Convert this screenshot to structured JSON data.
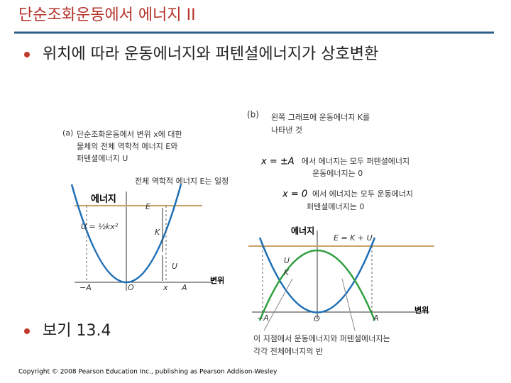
{
  "title": "단순조화운동에서 에너지 II",
  "bullets": [
    "위치에 따라 운동에너지와 퍼텐셜에너지가 상호변환",
    "보기 13.4"
  ],
  "figure_a": {
    "tag": "(a)",
    "caption": [
      "단순조화운동에서 변위 x에 대한",
      "물체의 전체 역학적 에너지 E와",
      "퍼텐셜에너지 U"
    ],
    "note": "전체 역학적 에너지 E는 일정",
    "y_axis": "에너지",
    "x_axis": "변위",
    "labels": {
      "E": "E",
      "U_formula": "U = ½kx²",
      "K": "K",
      "U": "U",
      "neg_A": "−A",
      "O": "O",
      "x": "x",
      "A": "A"
    }
  },
  "figure_b": {
    "tag": "(b)",
    "caption": [
      "왼쪽 그래프에 운동에너지 K를",
      "나타낸 것"
    ],
    "edge": {
      "position": "x = ±A",
      "lines": [
        "에서 에너지는 모두 퍼텐셜에너지",
        "운동에너지는 0"
      ]
    },
    "center": {
      "position": "x = 0",
      "lines": [
        "에서 에너지는 모두 운동에너지",
        "퍼텐셜에너지는 0"
      ]
    },
    "y_axis": "에너지",
    "x_axis": "변위",
    "labels": {
      "E_sum": "E = K + U",
      "U": "U",
      "K": "K",
      "neg_A": "−A",
      "O": "O",
      "A": "A"
    },
    "half_note": [
      "이 지점에서 운동에너지와 퍼텐셜에너지는",
      "각각 전체에너지의 반"
    ]
  },
  "footer": "Copyright © 2008 Pearson Education Inc., publishing as Pearson Addison-Wesley"
}
